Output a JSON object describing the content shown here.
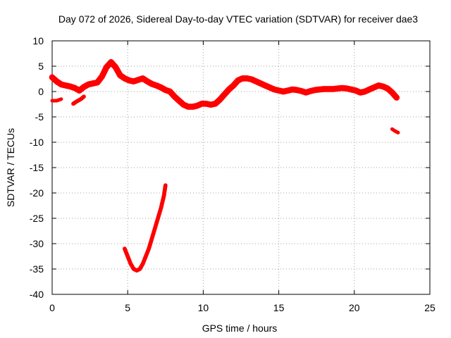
{
  "chart_data": {
    "type": "scatter",
    "title": "Day 072 of 2026, Sidereal Day-to-day VTEC variation (SDTVAR) for receiver dae3",
    "xlabel": "GPS time / hours",
    "ylabel": "SDTVAR / TECUs",
    "xlim": [
      0,
      25
    ],
    "ylim": [
      -40,
      10
    ],
    "xticks": [
      "0",
      "5",
      "10",
      "15",
      "20",
      "25"
    ],
    "yticks": [
      "10",
      "5",
      "0",
      "-5",
      "-10",
      "-15",
      "-20",
      "-25",
      "-30",
      "-35",
      "-40"
    ],
    "grid": true,
    "series_color": "#ff0000",
    "series": [
      {
        "name": "main-trace",
        "band_width": 1.2,
        "x": [
          0.0,
          0.3,
          0.6,
          0.9,
          1.2,
          1.5,
          1.8,
          2.1,
          2.4,
          2.7,
          3.0,
          3.3,
          3.6,
          3.9,
          4.2,
          4.5,
          4.8,
          5.1,
          5.4,
          5.7,
          6.0,
          6.3,
          6.6,
          6.9,
          7.2,
          7.5,
          7.8,
          8.1,
          8.4,
          8.7,
          9.0,
          9.3,
          9.6,
          9.9,
          10.2,
          10.5,
          10.8,
          11.1,
          11.4,
          11.7,
          12.0,
          12.3,
          12.6,
          12.9,
          13.2,
          13.5,
          13.8,
          14.1,
          14.4,
          14.7,
          15.0,
          15.3,
          15.6,
          15.9,
          16.2,
          16.5,
          16.8,
          17.1,
          17.4,
          17.7,
          18.0,
          18.3,
          18.6,
          18.9,
          19.2,
          19.5,
          19.8,
          20.1,
          20.4,
          20.7,
          21.0,
          21.3,
          21.6,
          21.9,
          22.2,
          22.5,
          22.8
        ],
        "y": [
          2.8,
          2.0,
          1.4,
          1.2,
          1.0,
          0.7,
          0.2,
          0.9,
          1.4,
          1.6,
          1.8,
          3.0,
          4.8,
          5.8,
          4.8,
          3.2,
          2.6,
          2.2,
          2.0,
          2.3,
          2.6,
          2.0,
          1.5,
          1.2,
          0.8,
          0.3,
          0.0,
          -1.0,
          -1.8,
          -2.6,
          -3.0,
          -3.0,
          -2.8,
          -2.4,
          -2.4,
          -2.6,
          -2.4,
          -1.6,
          -0.6,
          0.4,
          1.2,
          2.2,
          2.6,
          2.6,
          2.4,
          2.0,
          1.6,
          1.2,
          0.8,
          0.4,
          0.2,
          0.0,
          0.2,
          0.4,
          0.3,
          0.1,
          -0.2,
          0.1,
          0.3,
          0.4,
          0.5,
          0.5,
          0.5,
          0.6,
          0.7,
          0.6,
          0.4,
          0.2,
          -0.2,
          0.0,
          0.4,
          0.8,
          1.2,
          1.0,
          0.6,
          -0.2,
          -1.2
        ]
      },
      {
        "name": "early-fragment",
        "band_width": 0.7,
        "x": [
          0.0,
          0.3,
          0.6
        ],
        "y": [
          -1.8,
          -1.8,
          -1.5
        ]
      },
      {
        "name": "dip-fragment",
        "band_width": 0.8,
        "x": [
          1.4,
          1.6,
          1.9,
          2.1
        ],
        "y": [
          -2.4,
          -2.0,
          -1.5,
          -1.0
        ]
      },
      {
        "name": "deep-dip",
        "band_width": 0.8,
        "x": [
          4.8,
          5.0,
          5.2,
          5.4,
          5.6,
          5.8,
          6.0,
          6.2,
          6.4,
          6.6,
          6.8,
          7.0,
          7.2,
          7.4,
          7.5
        ],
        "y": [
          -31.0,
          -32.5,
          -34.0,
          -35.0,
          -35.3,
          -35.0,
          -34.0,
          -32.5,
          -31.0,
          -29.0,
          -27.0,
          -25.0,
          -23.0,
          -20.5,
          -18.5
        ]
      },
      {
        "name": "late-fragment",
        "band_width": 0.7,
        "x": [
          22.5,
          22.7,
          22.9
        ],
        "y": [
          -7.4,
          -7.8,
          -8.1
        ]
      }
    ]
  }
}
